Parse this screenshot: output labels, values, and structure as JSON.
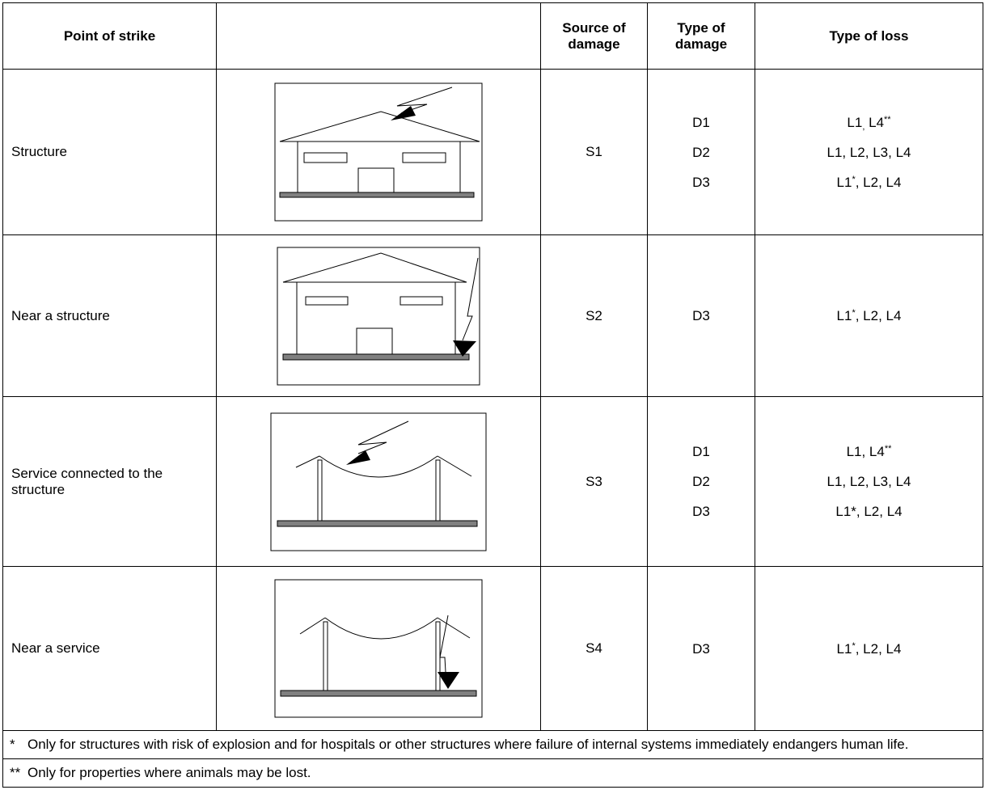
{
  "header": {
    "point": "Point of strike",
    "source": "Source of damage",
    "damage": "Type of damage",
    "loss": "Type of loss"
  },
  "rows": [
    {
      "point": "Structure",
      "source": "S1",
      "damage": [
        "D1",
        "D2",
        "D3"
      ],
      "loss": [
        [
          {
            "text": "L1"
          },
          {
            "text": ",",
            "sub": true
          },
          {
            "text": " L4"
          },
          {
            "text": "**",
            "sup": true
          }
        ],
        [
          {
            "text": "L1, L2, L3, L4"
          }
        ],
        [
          {
            "text": "L1"
          },
          {
            "text": "*",
            "sup": true
          },
          {
            "text": ", L2, L4"
          }
        ]
      ]
    },
    {
      "point": "Near a structure",
      "source": "S2",
      "damage": [
        "D3"
      ],
      "loss": [
        [
          {
            "text": "L1"
          },
          {
            "text": "*",
            "sup": true
          },
          {
            "text": ", L2, L4"
          }
        ]
      ]
    },
    {
      "point": "Service connected to the structure",
      "source": "S3",
      "damage": [
        "D1",
        "D2",
        "D3"
      ],
      "loss": [
        [
          {
            "text": "L1, L4"
          },
          {
            "text": "**",
            "sup": true
          }
        ],
        [
          {
            "text": "L1, L2, L3, L4"
          }
        ],
        [
          {
            "text": "L1*, L2, L4"
          }
        ]
      ]
    },
    {
      "point": "Near a service",
      "source": "S4",
      "damage": [
        "D3"
      ],
      "loss": [
        [
          {
            "text": "L1"
          },
          {
            "text": "*",
            "sup": true
          },
          {
            "text": ", L2, L4"
          }
        ]
      ]
    }
  ],
  "footnotes": [
    {
      "mark": "*",
      "text": "Only for structures with risk of explosion and for hospitals or other structures where failure of internal systems immediately endangers human life."
    },
    {
      "mark": "**",
      "text": "Only for properties where animals may be lost."
    }
  ]
}
